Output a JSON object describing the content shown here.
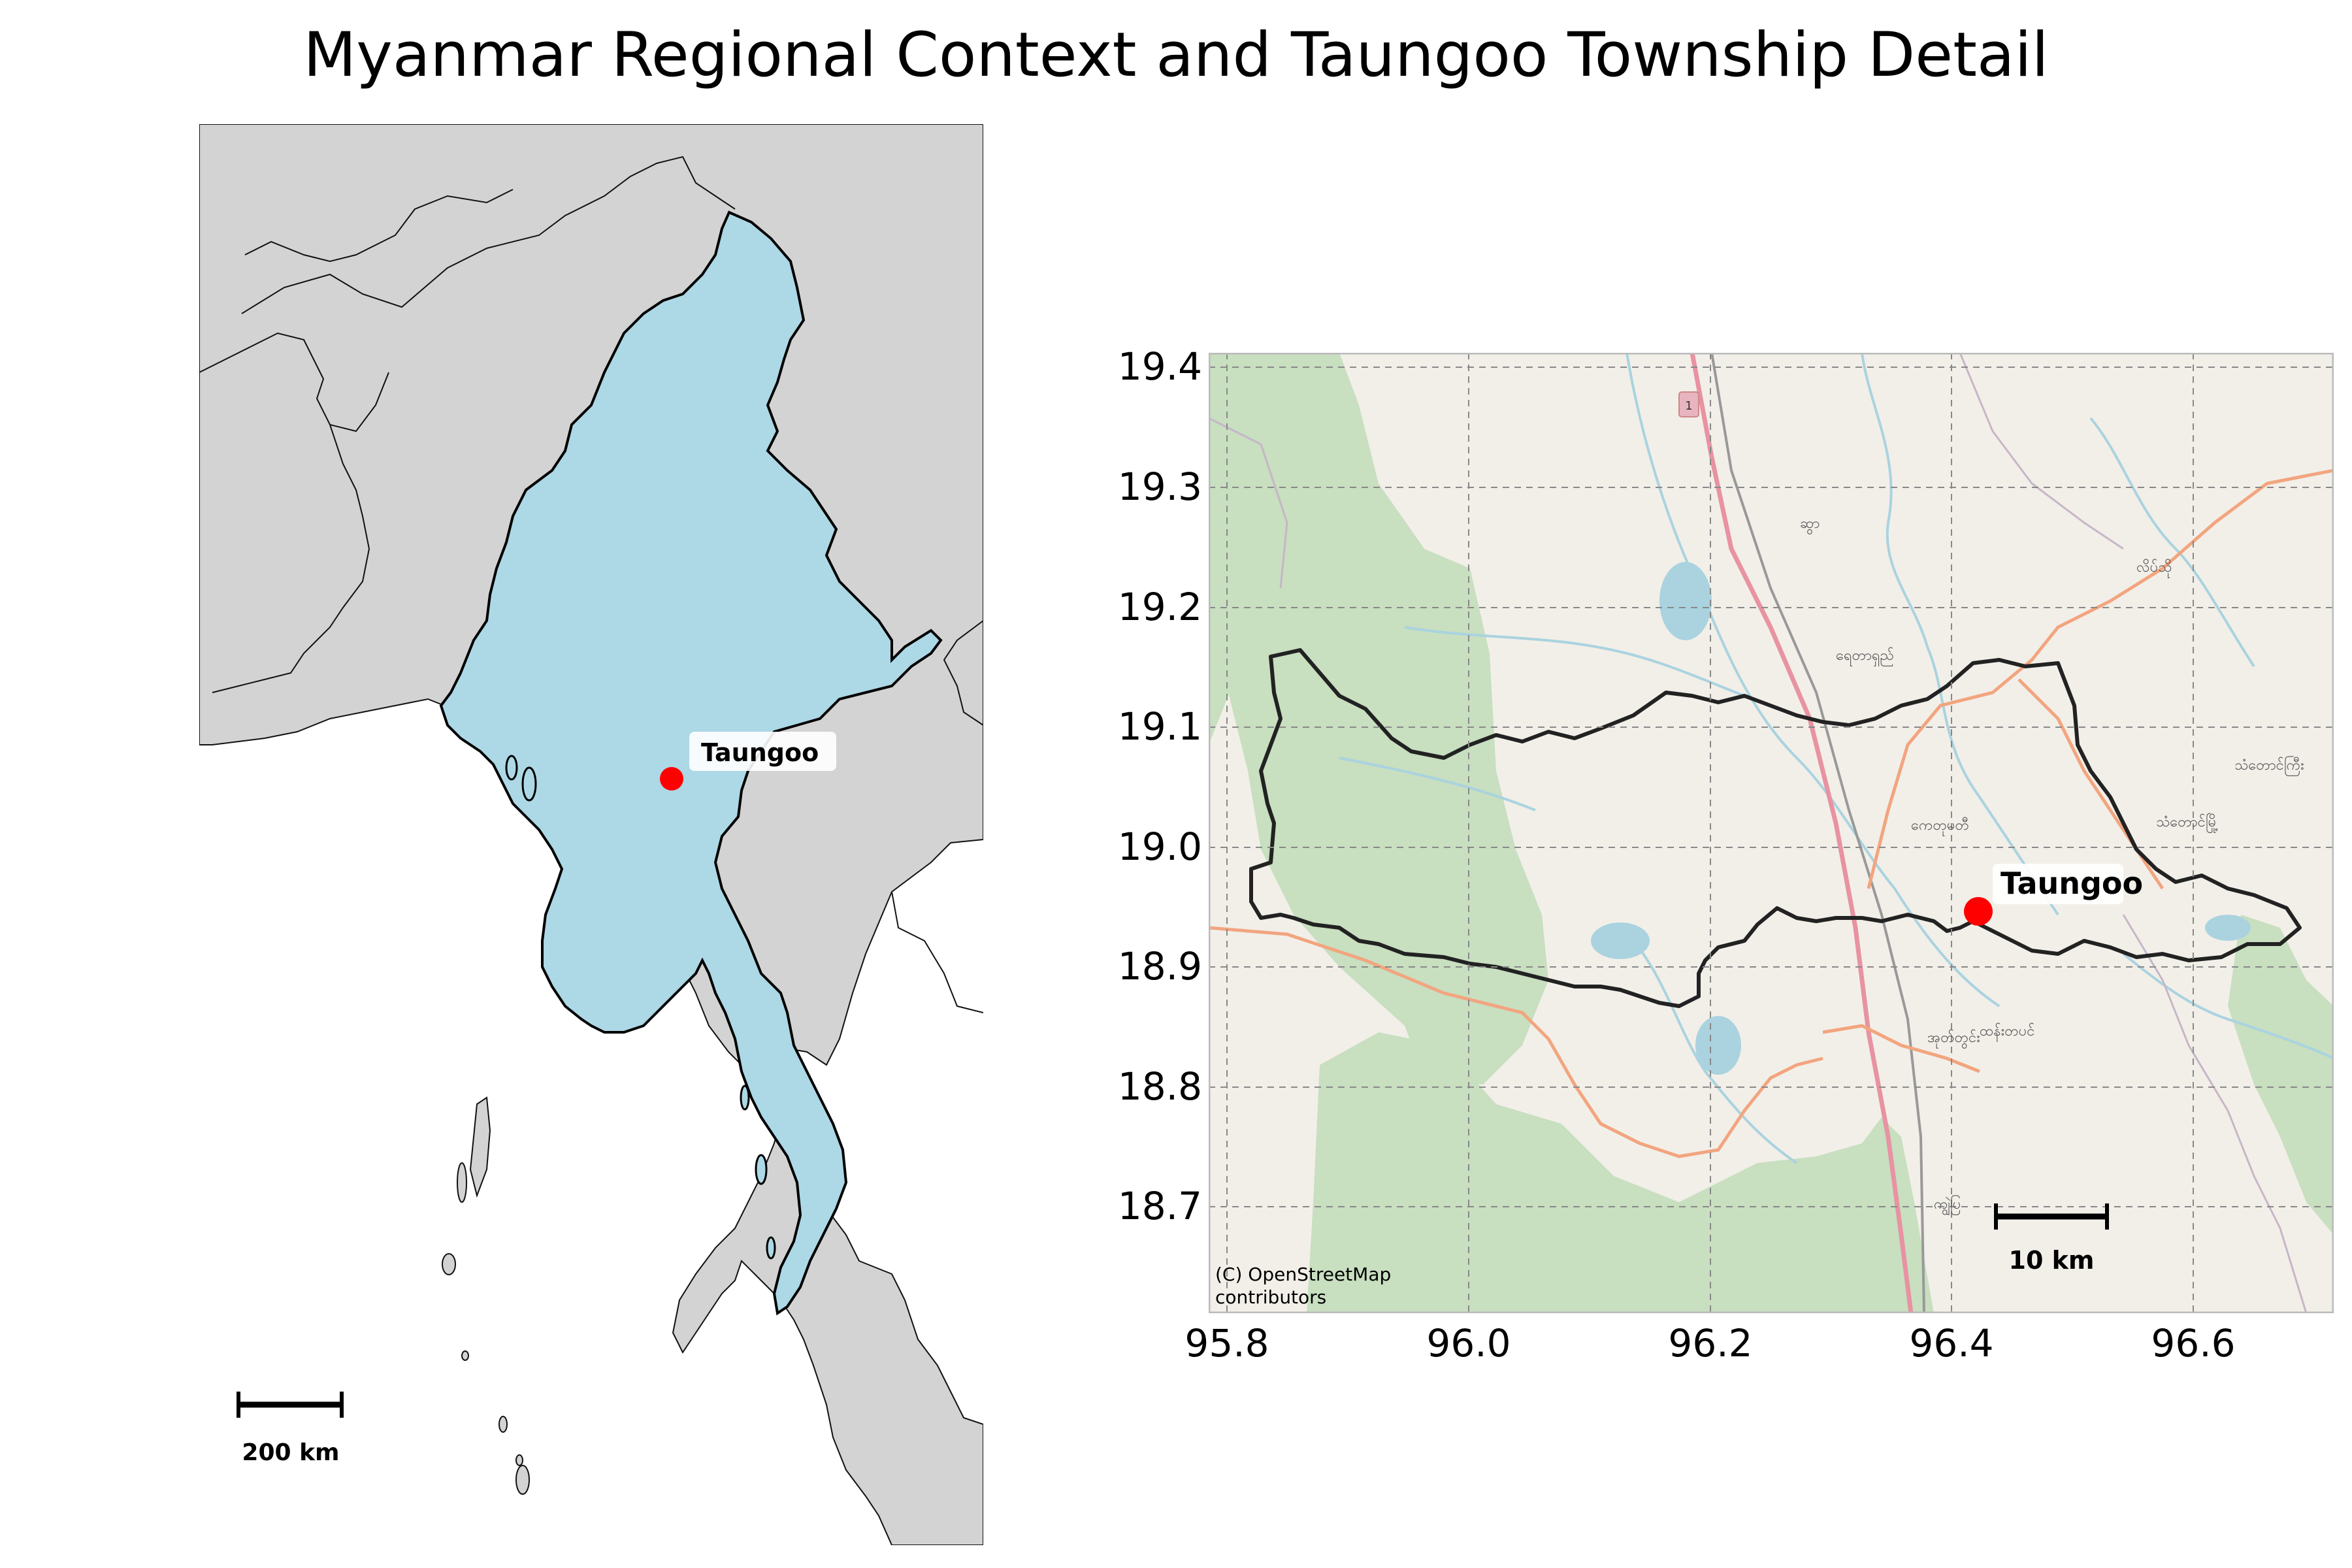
{
  "title": "Myanmar Regional Context and Taungoo Township Detail",
  "overview_map": {
    "marker_label": "Taungoo",
    "scalebar_label": "200 km",
    "colors": {
      "country_fill": "#add8e6",
      "neighbor_fill": "#d3d3d3",
      "sea": "#ffffff",
      "marker": "#ff0000"
    }
  },
  "detail_map": {
    "marker_label": "Taungoo",
    "scalebar_label": "10 km",
    "attribution": [
      "(C) OpenStreetMap",
      "contributors"
    ],
    "place_names": [
      "ဆွာ",
      "လိပ်သို",
      "ရေတာရှည်",
      "ကေတုမတီ",
      "သံတောင်ကြီး",
      "သံတောင်မြို့",
      "အုတ်တွင်း",
      "ထန်းတပင်",
      "ကျွဲပြ"
    ],
    "road_shield": "1",
    "x_ticks": [
      "95.8",
      "96.0",
      "96.2",
      "96.4",
      "96.6"
    ],
    "y_ticks": [
      "19.4",
      "19.3",
      "19.2",
      "19.1",
      "19.0",
      "18.9",
      "18.8",
      "18.7"
    ],
    "colors": {
      "forest": "#c8dfc0",
      "land": "#f2efe9",
      "water": "#aad3df",
      "trunk_road": "#e892a2",
      "primary_road": "#f2a57f",
      "boundary": "#222222",
      "marker": "#ff0000"
    }
  }
}
